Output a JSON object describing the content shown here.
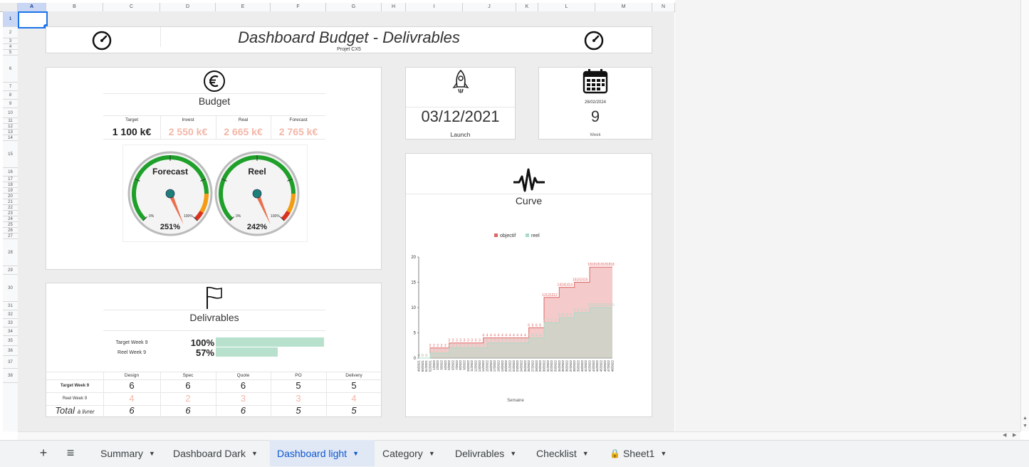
{
  "spreadsheet": {
    "columns": [
      "A",
      "B",
      "C",
      "D",
      "E",
      "F",
      "G",
      "H",
      "I",
      "J",
      "K",
      "L",
      "M",
      "N"
    ],
    "rows": [
      "1",
      "2",
      "3",
      "4",
      "5",
      "6",
      "7",
      "8",
      "9",
      "10",
      "11",
      "12",
      "13",
      "14",
      "15",
      "16",
      "17",
      "18",
      "19",
      "20",
      "21",
      "22",
      "23",
      "24",
      "25",
      "26",
      "27",
      "28",
      "29",
      "30",
      "31",
      "32",
      "33",
      "34",
      "35",
      "36",
      "37",
      "38"
    ],
    "selected_column": "A",
    "selected_row": "1"
  },
  "header": {
    "title": "Dashboard Budget - Delivrables",
    "subtitle": "Projet CX5",
    "left_icon": "speedometer-icon",
    "right_icon": "speedometer-icon"
  },
  "budget": {
    "icon": "euro-icon",
    "title": "Budget",
    "columns": [
      "Target",
      "Invest",
      "Real",
      "Forecast"
    ],
    "values": [
      "1 100  k€",
      "2 550  k€",
      "2 665  k€",
      "2 765  k€"
    ],
    "gauges": [
      {
        "label": "Forecast",
        "value": "251%",
        "min_label": "0%",
        "max_label": "100%",
        "fraction": 2.51
      },
      {
        "label": "Reel",
        "value": "242%",
        "min_label": "0%",
        "max_label": "100%",
        "fraction": 2.42
      }
    ]
  },
  "launch": {
    "icon": "rocket-icon",
    "date": "03/12/2021",
    "label": "Launch"
  },
  "week": {
    "icon": "calendar-icon",
    "date": "26/02/2024",
    "number": "9",
    "label": "Week"
  },
  "delivrables": {
    "icon": "flag-icon",
    "title": "Delivrables",
    "progress": [
      {
        "label": "Target  Week 9",
        "value": "100%",
        "fraction": 1.0
      },
      {
        "label": "Reel  Week 9",
        "value": "57%",
        "fraction": 0.57
      }
    ],
    "columns": [
      "Design",
      "Spec",
      "Quote",
      "PO",
      "Delivery"
    ],
    "rows": [
      {
        "label": "Target  Week 9",
        "values": [
          "6",
          "6",
          "6",
          "5",
          "5"
        ]
      },
      {
        "label": "Reel  Week 9",
        "values": [
          "4",
          "2",
          "3",
          "3",
          "4"
        ]
      }
    ],
    "total_label": "Total",
    "total_suffix": "à livrer",
    "totals": [
      "6",
      "6",
      "6",
      "5",
      "5"
    ]
  },
  "curve": {
    "icon": "pulse-icon",
    "title": "Curve"
  },
  "chart_data": {
    "type": "area",
    "xlabel": "Semaine",
    "ylabel": "",
    "ylim": [
      0,
      20
    ],
    "yticks": [
      "0",
      "5",
      "10",
      "15",
      "20"
    ],
    "legend_position": "top",
    "x": [
      "49/2021",
      "50/2021",
      "51/2021",
      "52/2021",
      "1/2022",
      "2/2022",
      "3/2022",
      "4/2022",
      "5/2022",
      "6/2022",
      "7/2022",
      "8/2022",
      "9/2022",
      "10/2022",
      "11/2022",
      "12/2022",
      "13/2022",
      "14/2022",
      "15/2022",
      "16/2022",
      "17/2022",
      "18/2022",
      "19/2022",
      "20/2022",
      "21/2022",
      "22/2022",
      "23/2022",
      "24/2022",
      "25/2022",
      "26/2022",
      "27/2022",
      "28/2022",
      "29/2022",
      "30/2022",
      "31/2022",
      "32/2022",
      "33/2022",
      "34/2022",
      "35/2022",
      "36/2022",
      "37/2022",
      "38/2022",
      "39/2022",
      "40/2022",
      "41/2022",
      "42/2022",
      "43/2022",
      "44/2022",
      "45/2022",
      "46/2022",
      "47/2022",
      "48/2022"
    ],
    "series": [
      {
        "name": "objectif",
        "color": "#e06666",
        "values": [
          0,
          0,
          0,
          2,
          2,
          2,
          2,
          2,
          3,
          3,
          3,
          3,
          3,
          3,
          3,
          3,
          3,
          4,
          4,
          4,
          4,
          4,
          4,
          4,
          4,
          4,
          4,
          4,
          4,
          6,
          6,
          6,
          6,
          12,
          12,
          12,
          12,
          14,
          14,
          14,
          14,
          15,
          15,
          15,
          15,
          18,
          18,
          18,
          18,
          18,
          18,
          18
        ]
      },
      {
        "name": "reel",
        "color": "#a8dcc6",
        "values": [
          0,
          0,
          0,
          1,
          1,
          1,
          1,
          1,
          2,
          2,
          2,
          2,
          2,
          2,
          2,
          2,
          2,
          2,
          3,
          3,
          3,
          3,
          3,
          3,
          3,
          3,
          3,
          3,
          3,
          4,
          4,
          4,
          4,
          7,
          7,
          7,
          7,
          8,
          8,
          8,
          8,
          9,
          9,
          9,
          9,
          10,
          10,
          10,
          10,
          10,
          10,
          10
        ]
      }
    ]
  },
  "tabs": {
    "add_label": "+",
    "menu_label": "≡",
    "items": [
      {
        "label": "Summary",
        "active": false,
        "locked": false
      },
      {
        "label": "Dashboard Dark",
        "active": false,
        "locked": false
      },
      {
        "label": "Dashboard light",
        "active": true,
        "locked": false
      },
      {
        "label": "Category",
        "active": false,
        "locked": false
      },
      {
        "label": "Delivrables",
        "active": false,
        "locked": false
      },
      {
        "label": "Checklist",
        "active": false,
        "locked": false
      },
      {
        "label": "Sheet1",
        "active": false,
        "locked": true
      }
    ]
  },
  "colors": {
    "accent": "#0b57d0",
    "pink_value": "#f4b7a8",
    "gauge_green": "#1fa02a",
    "gauge_orange": "#f39c12",
    "gauge_red": "#d9321f",
    "bar_green": "#b7e1cd"
  }
}
